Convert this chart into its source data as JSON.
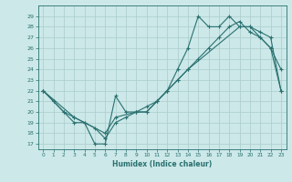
{
  "xlabel": "Humidex (Indice chaleur)",
  "ylabel": "",
  "bg_color": "#cce8e8",
  "grid_color": "#aacccc",
  "line_color": "#2a7070",
  "xlim": [
    -0.5,
    23.5
  ],
  "ylim": [
    16.5,
    30.0
  ],
  "xticks": [
    0,
    1,
    2,
    3,
    4,
    5,
    6,
    7,
    8,
    9,
    10,
    11,
    12,
    13,
    14,
    15,
    16,
    17,
    18,
    19,
    20,
    21,
    22,
    23
  ],
  "yticks": [
    17,
    18,
    19,
    20,
    21,
    22,
    23,
    24,
    25,
    26,
    27,
    28,
    29
  ],
  "line1_x": [
    0,
    1,
    2,
    3,
    4,
    5,
    6,
    7,
    8,
    9,
    10,
    11,
    12,
    13,
    14,
    15,
    16,
    17,
    18,
    19,
    20,
    21,
    22,
    23
  ],
  "line1_y": [
    22,
    21,
    20,
    19,
    19,
    17,
    17,
    21.5,
    20,
    20,
    20,
    21,
    22,
    24,
    26,
    29,
    28,
    28,
    29,
    28,
    28,
    27,
    26,
    24
  ],
  "line2_x": [
    0,
    1,
    2,
    3,
    4,
    5,
    6,
    7,
    8,
    9,
    10,
    11,
    12,
    13,
    14,
    15,
    16,
    17,
    18,
    19,
    20,
    21,
    22,
    23
  ],
  "line2_y": [
    22,
    21,
    20,
    19.5,
    19,
    18.5,
    17.5,
    19,
    19.5,
    20,
    20,
    21,
    22,
    23,
    24,
    25,
    26,
    27,
    28,
    28.5,
    27.5,
    27,
    26,
    22
  ],
  "line3_x": [
    0,
    3,
    6,
    7,
    9,
    10,
    11,
    12,
    13,
    14,
    19,
    20,
    21,
    22,
    23
  ],
  "line3_y": [
    22,
    19.5,
    18,
    19.5,
    20,
    20.5,
    21,
    22,
    23,
    24,
    28,
    28,
    27.5,
    27,
    22
  ]
}
